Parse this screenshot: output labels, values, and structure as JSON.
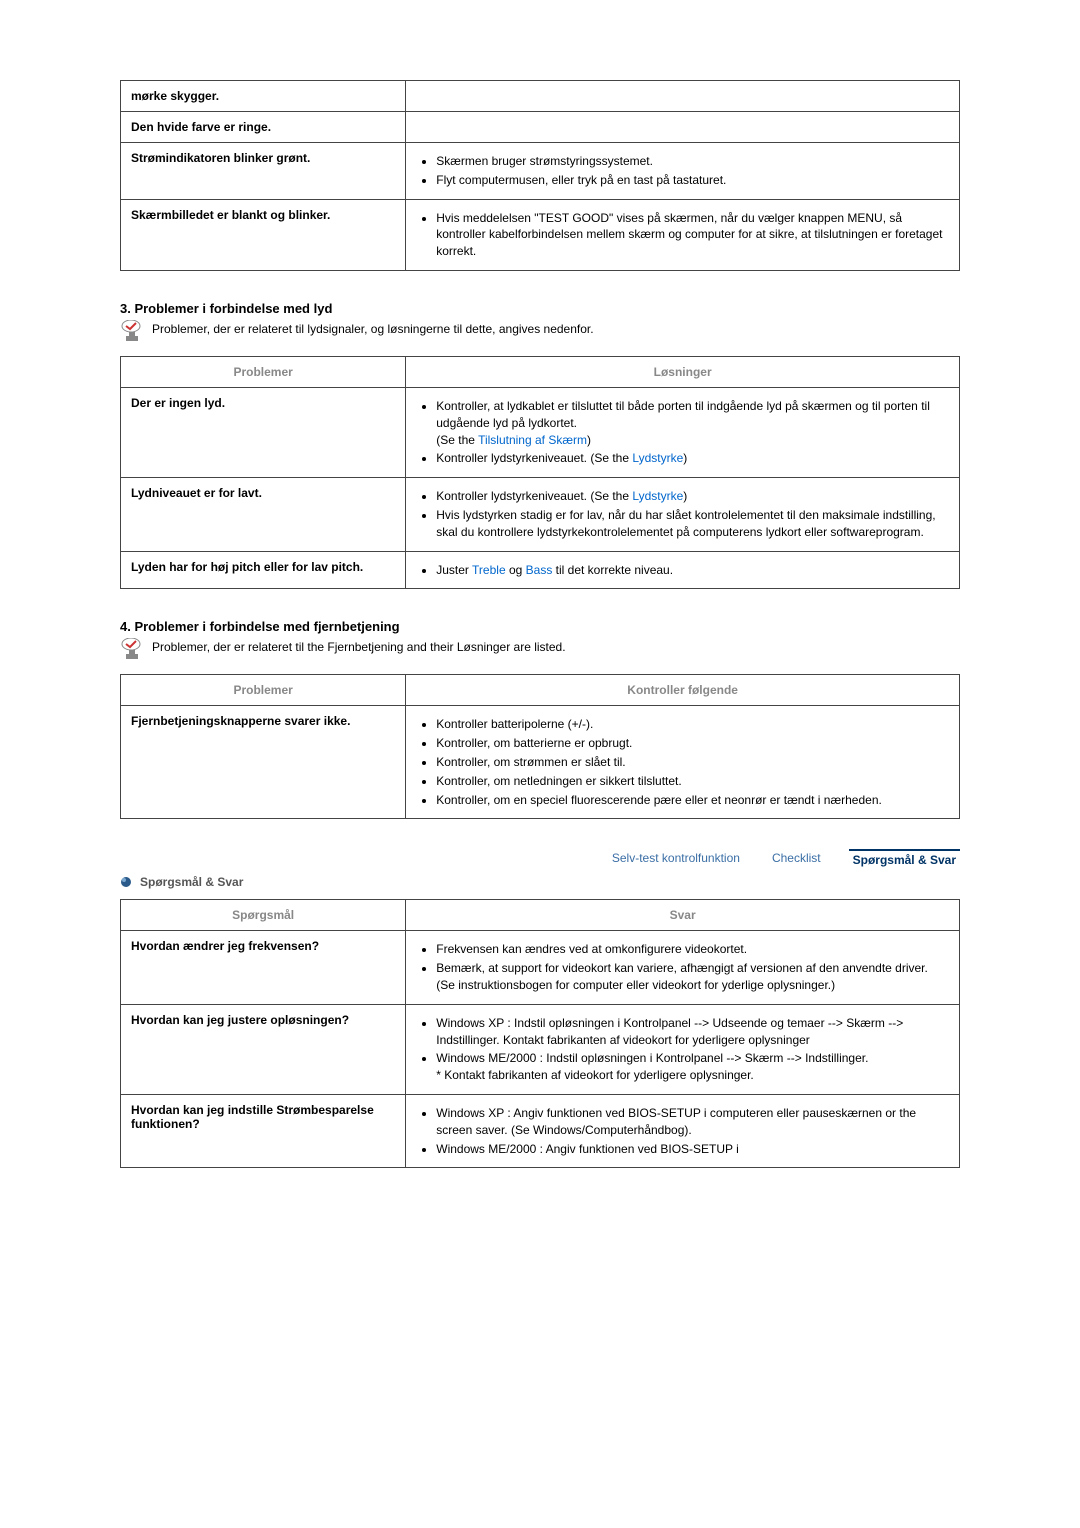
{
  "colors": {
    "link": "#0066cc",
    "tab_active": "#003366",
    "tab_inactive": "#3a6ea5",
    "table_border": "#444444",
    "header_text": "#888888"
  },
  "table1": {
    "rows": [
      {
        "problem": "mørke skygger.",
        "solutions": []
      },
      {
        "problem": "Den hvide farve er ringe.",
        "solutions": []
      },
      {
        "problem": "Strømindikatoren blinker grønt.",
        "solutions": [
          "Skærmen bruger strømstyringssystemet.",
          "Flyt computermusen, eller tryk på en tast på tastaturet."
        ]
      },
      {
        "problem": "Skærmbilledet er blankt og blinker.",
        "solutions": [
          "Hvis meddelelsen \"TEST GOOD\" vises på skærmen, når du vælger knappen MENU, så kontroller kabelforbindelsen mellem skærm og computer for at sikre, at tilslutningen er foretaget korrekt."
        ]
      }
    ]
  },
  "section3": {
    "heading": "3. Problemer i forbindelse med lyd",
    "intro": "Problemer, der er relateret til lydsignaler, og løsningerne til dette, angives nedenfor.",
    "headers": {
      "col1": "Problemer",
      "col2": "Løsninger"
    },
    "rows": [
      {
        "problem": "Der er ingen lyd.",
        "items": [
          {
            "pre": "Kontroller, at lydkablet er tilsluttet til både porten til indgående lyd på skærmen og til porten til udgående lyd på lydkortet.\n(Se the ",
            "link": "Tilslutning af Skærm",
            "post": ")"
          },
          {
            "pre": "Kontroller lydstyrkeniveauet. (Se the ",
            "link": "Lydstyrke",
            "post": ")"
          }
        ]
      },
      {
        "problem": "Lydniveauet er for lavt.",
        "items": [
          {
            "pre": "Kontroller lydstyrkeniveauet. (Se the ",
            "link": "Lydstyrke",
            "post": ")"
          },
          {
            "pre": "Hvis lydstyrken stadig er for lav, når du har slået kontrolelementet til den maksimale indstilling, skal du kontrollere lydstyrkekontrolelementet på computerens lydkort eller softwareprogram.",
            "link": "",
            "post": ""
          }
        ]
      },
      {
        "problem": "Lyden har for høj pitch eller for lav pitch.",
        "items": [
          {
            "pre": "Juster ",
            "link": "Treble",
            "mid": " og ",
            "link2": "Bass",
            "post": " til det korrekte niveau."
          }
        ]
      }
    ]
  },
  "section4": {
    "heading": "4. Problemer i forbindelse med fjernbetjening",
    "intro": "Problemer, der er relateret til the Fjernbetjening and their Løsninger are listed.",
    "headers": {
      "col1": "Problemer",
      "col2": "Kontroller følgende"
    },
    "rows": [
      {
        "problem": "Fjernbetjeningsknapperne svarer ikke.",
        "items": [
          "Kontroller batteripolerne (+/-).",
          "Kontroller, om batterierne er opbrugt.",
          "Kontroller, om strømmen er slået til.",
          "Kontroller, om netledningen er sikkert tilsluttet.",
          "Kontroller, om en speciel fluorescerende pære eller et neonrør er tændt i nærheden."
        ]
      }
    ]
  },
  "tabs": {
    "t1": "Selv-test kontrolfunktion",
    "t2": "Checklist",
    "t3": "Spørgsmål & Svar"
  },
  "qsection": {
    "heading": "Spørgsmål & Svar",
    "headers": {
      "col1": "Spørgsmål",
      "col2": "Svar"
    },
    "rows": [
      {
        "q": "Hvordan ændrer jeg frekvensen?",
        "items": [
          "Frekvensen kan ændres ved at omkonfigurere videokortet.",
          "Bemærk, at support for videokort kan variere, afhængigt af versionen af den anvendte driver. (Se instruktionsbogen for computer eller videokort for yderlige oplysninger.)"
        ]
      },
      {
        "q": "Hvordan kan jeg justere opløsningen?",
        "items": [
          "Windows XP : Indstil opløsningen i Kontrolpanel --> Udseende og temaer --> Skærm --> Indstillinger. Kontakt fabrikanten af videokort for yderligere oplysninger",
          "Windows ME/2000 : Indstil opløsningen i Kontrolpanel --> Skærm --> Indstillinger.\n* Kontakt fabrikanten af videokort for yderligere oplysninger."
        ]
      },
      {
        "q": "Hvordan kan jeg indstille Strømbesparelse funktionen?",
        "items": [
          "Windows XP : Angiv funktionen ved BIOS-SETUP i computeren eller pauseskærnen or the screen saver. (Se Windows/Computerhåndbog).",
          "Windows ME/2000 : Angiv funktionen ved BIOS-SETUP i"
        ]
      }
    ]
  }
}
